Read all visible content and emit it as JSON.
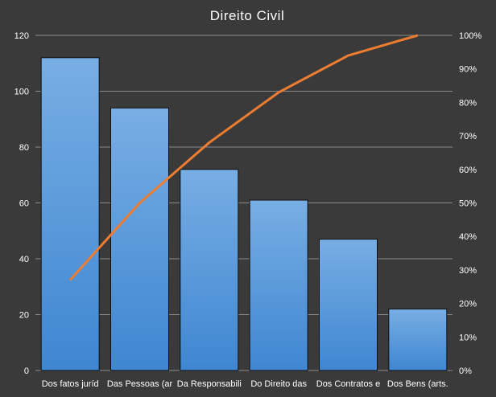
{
  "chart_data": {
    "type": "bar",
    "title": "Direito  Civil",
    "categories": [
      "Dos fatos juríd",
      "Das Pessoas (ar",
      "Da Responsabili",
      "Do Direito das",
      "Dos Contratos e",
      "Dos Bens (arts."
    ],
    "series": [
      {
        "values": [
          112,
          94,
          72,
          61,
          47,
          22
        ]
      },
      {
        "type": "line",
        "axis": "right",
        "values": [
          27,
          50,
          68,
          83,
          94,
          100
        ]
      }
    ],
    "ylim": [
      0,
      120
    ],
    "yticks": [
      "0",
      "20",
      "40",
      "60",
      "80",
      "100",
      "120"
    ],
    "y2lim": [
      0,
      100
    ],
    "y2ticks": [
      "0%",
      "10%",
      "20%",
      "30%",
      "40%",
      "50%",
      "60%",
      "70%",
      "80%",
      "90%",
      "100%"
    ],
    "grid": true,
    "colors": {
      "bar": "#4a90d9",
      "line": "#ed7d31",
      "background": "#3a3a3a",
      "grid": "#8a8a8a"
    }
  }
}
